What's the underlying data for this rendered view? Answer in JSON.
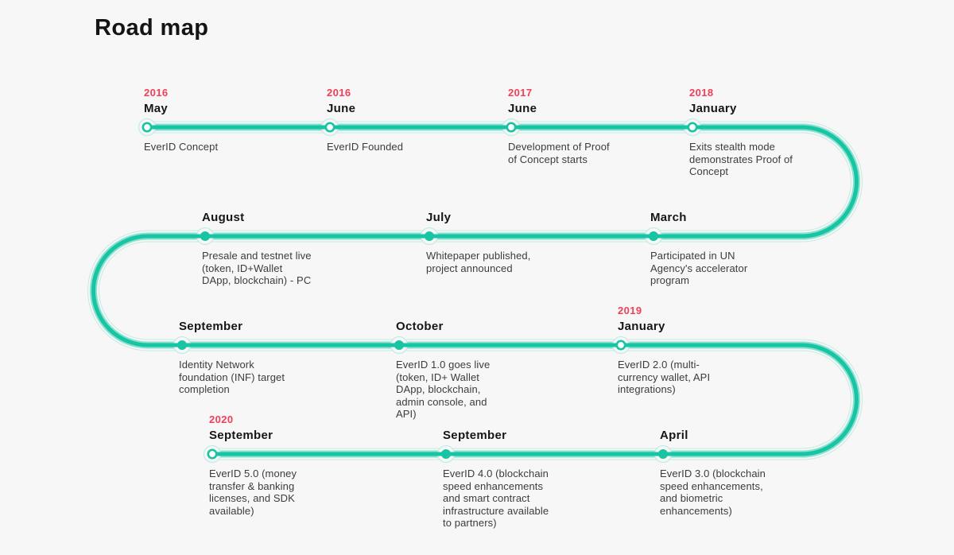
{
  "page": {
    "title": "Road map",
    "background": "#f7f7f7"
  },
  "timeline": {
    "colors": {
      "line": "#17c5a4",
      "line_soft": "#8ae1cf",
      "line_faint": "#c2ece3",
      "node_open_fill": "#ffffff",
      "year_text": "#f23e57",
      "month_text": "#161616",
      "description_text": "#3c3c3c",
      "heading_text": "#141414",
      "background": "#f7f7f7"
    },
    "milestones": [
      {
        "year": "2016",
        "month": "May",
        "description": "EverID Concept",
        "node_style": "open"
      },
      {
        "year": "2016",
        "month": "June",
        "description": "EverID Founded",
        "node_style": "open"
      },
      {
        "year": "2017",
        "month": "June",
        "description": "Development of Proof\nof Concept starts",
        "node_style": "open"
      },
      {
        "year": "2018",
        "month": "January",
        "description": "Exits stealth mode\ndemonstrates Proof of\nConcept",
        "node_style": "open"
      },
      {
        "year": "",
        "month": "August",
        "description": "Presale and testnet live\n(token, ID+Wallet\nDApp, blockchain) - PC",
        "node_style": "filled"
      },
      {
        "year": "",
        "month": "July",
        "description": "Whitepaper published,\nproject announced",
        "node_style": "filled"
      },
      {
        "year": "",
        "month": "March",
        "description": "Participated in UN\nAgency's accelerator\nprogram",
        "node_style": "filled"
      },
      {
        "year": "",
        "month": "September",
        "description": "Identity Network\nfoundation (INF) target\ncompletion",
        "node_style": "filled"
      },
      {
        "year": "",
        "month": "October",
        "description": "EverID 1.0 goes live\n(token, ID+ Wallet\nDApp, blockchain,\nadmin console, and\nAPI)",
        "node_style": "filled"
      },
      {
        "year": "2019",
        "month": "January",
        "description": "EverID 2.0 (multi-\ncurrency wallet, API\nintegrations)",
        "node_style": "open"
      },
      {
        "year": "2020",
        "month": "September",
        "description": "EverID 5.0 (money\ntransfer & banking\nlicenses, and SDK\navailable)",
        "node_style": "open"
      },
      {
        "year": "",
        "month": "September",
        "description": "EverID 4.0 (blockchain\nspeed enhancements\nand smart contract\ninfrastructure available\nto partners)",
        "node_style": "filled"
      },
      {
        "year": "",
        "month": "April",
        "description": "EverID 3.0 (blockchain\nspeed enhancements,\nand biometric\nenhancements)",
        "node_style": "filled"
      }
    ]
  }
}
